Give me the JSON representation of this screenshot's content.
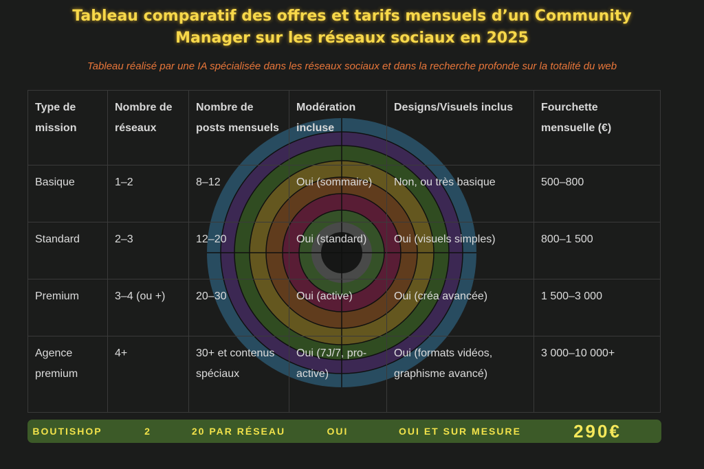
{
  "header": {
    "title": "Tableau comparatif des offres et tarifs mensuels d’un Community Manager sur les réseaux sociaux en 2025",
    "subtitle": "Tableau réalisé par une IA spécialisée dans les réseaux sociaux et dans la recherche profonde sur la totalité du web"
  },
  "table": {
    "columns": [
      "Type de mission",
      "Nombre de réseaux",
      "Nombre de posts mensuels",
      "Modération incluse",
      "Designs/Visuels inclus",
      "Fourchette mensuelle (€)"
    ],
    "rows": [
      [
        "Basique",
        "1–2",
        "8–12",
        "Oui (sommaire)",
        "Non, ou très basique",
        "500–800"
      ],
      [
        "Standard",
        "2–3",
        "12–20",
        "Oui (standard)",
        "Oui (visuels simples)",
        "800–1 500"
      ],
      [
        "Premium",
        "3–4 (ou +)",
        "20–30",
        "Oui (active)",
        "Oui (créa avancée)",
        "1 500–3 000"
      ],
      [
        "Agence premium",
        "4+",
        "30+ et contenus spéciaux",
        "Oui (7J/7, pro-active)",
        "Oui (formats vidéos, graphisme avancé)",
        "3 000–10 000+"
      ]
    ]
  },
  "highlight": {
    "cells": [
      "BOUTISHOP",
      "2",
      "20 PAR RÉSEAU",
      "OUI",
      "OUI ET SUR MESURE",
      "290€"
    ]
  }
}
